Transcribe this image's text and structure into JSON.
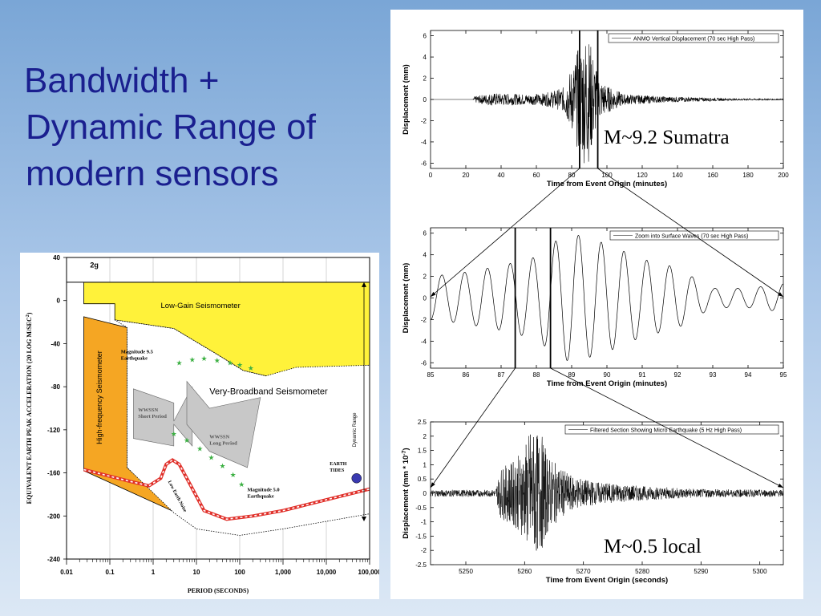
{
  "slide": {
    "title_line1": "Bandwidth +",
    "title_line2": "Dynamic Range of",
    "title_line3": "modern sensors",
    "annotation_top": "M~9.2 Sumatra",
    "annotation_bottom": "M~0.5 local"
  },
  "chart_data": [
    {
      "type": "line",
      "legend": "ANMO Vertical Displacement (70 sec High Pass)",
      "xlabel": "Time from Event Origin (minutes)",
      "ylabel": "Displacement (mm)",
      "xlim": [
        0,
        200
      ],
      "ylim": [
        -6.5,
        6.5
      ],
      "xticks": [
        "0",
        "20",
        "40",
        "60",
        "80",
        "100",
        "120",
        "140",
        "160",
        "180",
        "200"
      ],
      "yticks": [
        "6",
        "4",
        "2",
        "0",
        "-2",
        "-4",
        "-6"
      ],
      "markers_x": [
        84.5,
        94.8
      ],
      "envelope": {
        "x": [
          0,
          24,
          25,
          35,
          55,
          65,
          75,
          80,
          85,
          88,
          90,
          92,
          95,
          100,
          110,
          130,
          150,
          170,
          200
        ],
        "amp": [
          0,
          0,
          0.3,
          0.6,
          0.5,
          0.6,
          1.1,
          3.0,
          5.5,
          6.3,
          5.8,
          4.5,
          2.2,
          1.3,
          0.5,
          0.3,
          0.2,
          0.1,
          0.05
        ]
      }
    },
    {
      "type": "line",
      "legend": "Zoom into Surface Waves (70 sec High Pass)",
      "xlabel": "Time from Event Origin (minutes)",
      "ylabel": "Displacement (mm)",
      "xlim": [
        85,
        95
      ],
      "ylim": [
        -6.5,
        6.5
      ],
      "xticks": [
        "85",
        "86",
        "87",
        "88",
        "89",
        "90",
        "91",
        "92",
        "93",
        "94",
        "95"
      ],
      "yticks": [
        "6",
        "4",
        "2",
        "0",
        "-2",
        "-4",
        "-6"
      ],
      "markers_x": [
        87.4,
        88.4
      ],
      "envelope": {
        "x": [
          85,
          86,
          87,
          87.5,
          88,
          88.5,
          89,
          90,
          91,
          92,
          92.5,
          93,
          94,
          95
        ],
        "amp": [
          2.0,
          2.4,
          3.0,
          3.4,
          3.8,
          5.2,
          6.0,
          5.0,
          3.6,
          2.8,
          1.8,
          0.9,
          0.9,
          1.3
        ]
      }
    },
    {
      "type": "line",
      "legend": "Filtered Section Showing Micro Earthquake (5 Hz High Pass)",
      "xlabel": "Time from Event Origin (seconds)",
      "ylabel": "Displacement (mm * 10",
      "ylabel_sup": "-7",
      "ylabel_end": ")",
      "xlim": [
        5244,
        5304
      ],
      "ylim": [
        -2.5,
        2.5
      ],
      "xticks": [
        {
          "v": 5250,
          "t": "5250"
        },
        {
          "v": 5260,
          "t": "5260"
        },
        {
          "v": 5270,
          "t": "5270"
        },
        {
          "v": 5280,
          "t": "5280"
        },
        {
          "v": 5290,
          "t": "5290"
        },
        {
          "v": 5300,
          "t": "5300"
        }
      ],
      "yticks": [
        "2.5",
        "2",
        "1.5",
        "1",
        "0.5",
        "0",
        "-0.5",
        "-1",
        "-1.5",
        "-2",
        "-2.5"
      ],
      "envelope": {
        "x": [
          5244,
          5255,
          5256,
          5258,
          5260,
          5261,
          5262,
          5263,
          5264,
          5266,
          5268,
          5272,
          5280,
          5290,
          5304
        ],
        "amp": [
          0.12,
          0.12,
          0.9,
          1.1,
          1.6,
          2.3,
          2.1,
          2.0,
          1.3,
          0.9,
          0.6,
          0.4,
          0.25,
          0.15,
          0.12
        ]
      }
    },
    {
      "type": "area",
      "xlabel": "PERIOD (SECONDS)",
      "ylabel": "EQUIVALENT EARTH PEAK ACCELERATION (20 LOG M/SEC",
      "ylabel_sup": "2",
      "ylabel_end": ")",
      "xscale": "log",
      "xticks": [
        "0.01",
        "0.1",
        "1",
        "10",
        "100",
        "1,000",
        "10,000",
        "100,000"
      ],
      "yticks": [
        "40",
        "0",
        "-40",
        "-80",
        "-120",
        "-160",
        "-200",
        "-240"
      ],
      "ylim": [
        -240,
        40
      ],
      "labels": {
        "g2": "2g",
        "low_gain": "Low-Gain Seismometer",
        "high_freq": "High-frequency Seismometer",
        "vbb": "Very-Broadband Seismometer",
        "mag95_a": "Magnitude  9.5",
        "mag95_b": "Earthquake",
        "mag50_a": "Magnitude  5.0",
        "mag50_b": "Earthquake",
        "wwssn_sp_a": "WWSSN",
        "wwssn_sp_b": "Short Period",
        "wwssn_lp_a": "WWSSN",
        "wwssn_lp_b": "Long Period",
        "earth_tides_a": "EARTH",
        "earth_tides_b": "TIDES",
        "dynamic_range": "Dynamic Range",
        "low_earth_noise": "Low   Earth  Noise"
      },
      "colors": {
        "low_gain": "#fff23a",
        "high_freq": "#f5a623",
        "wwssn": "#c8c8c8",
        "noise": "#e0302a",
        "stars": "#3cb043"
      }
    }
  ]
}
